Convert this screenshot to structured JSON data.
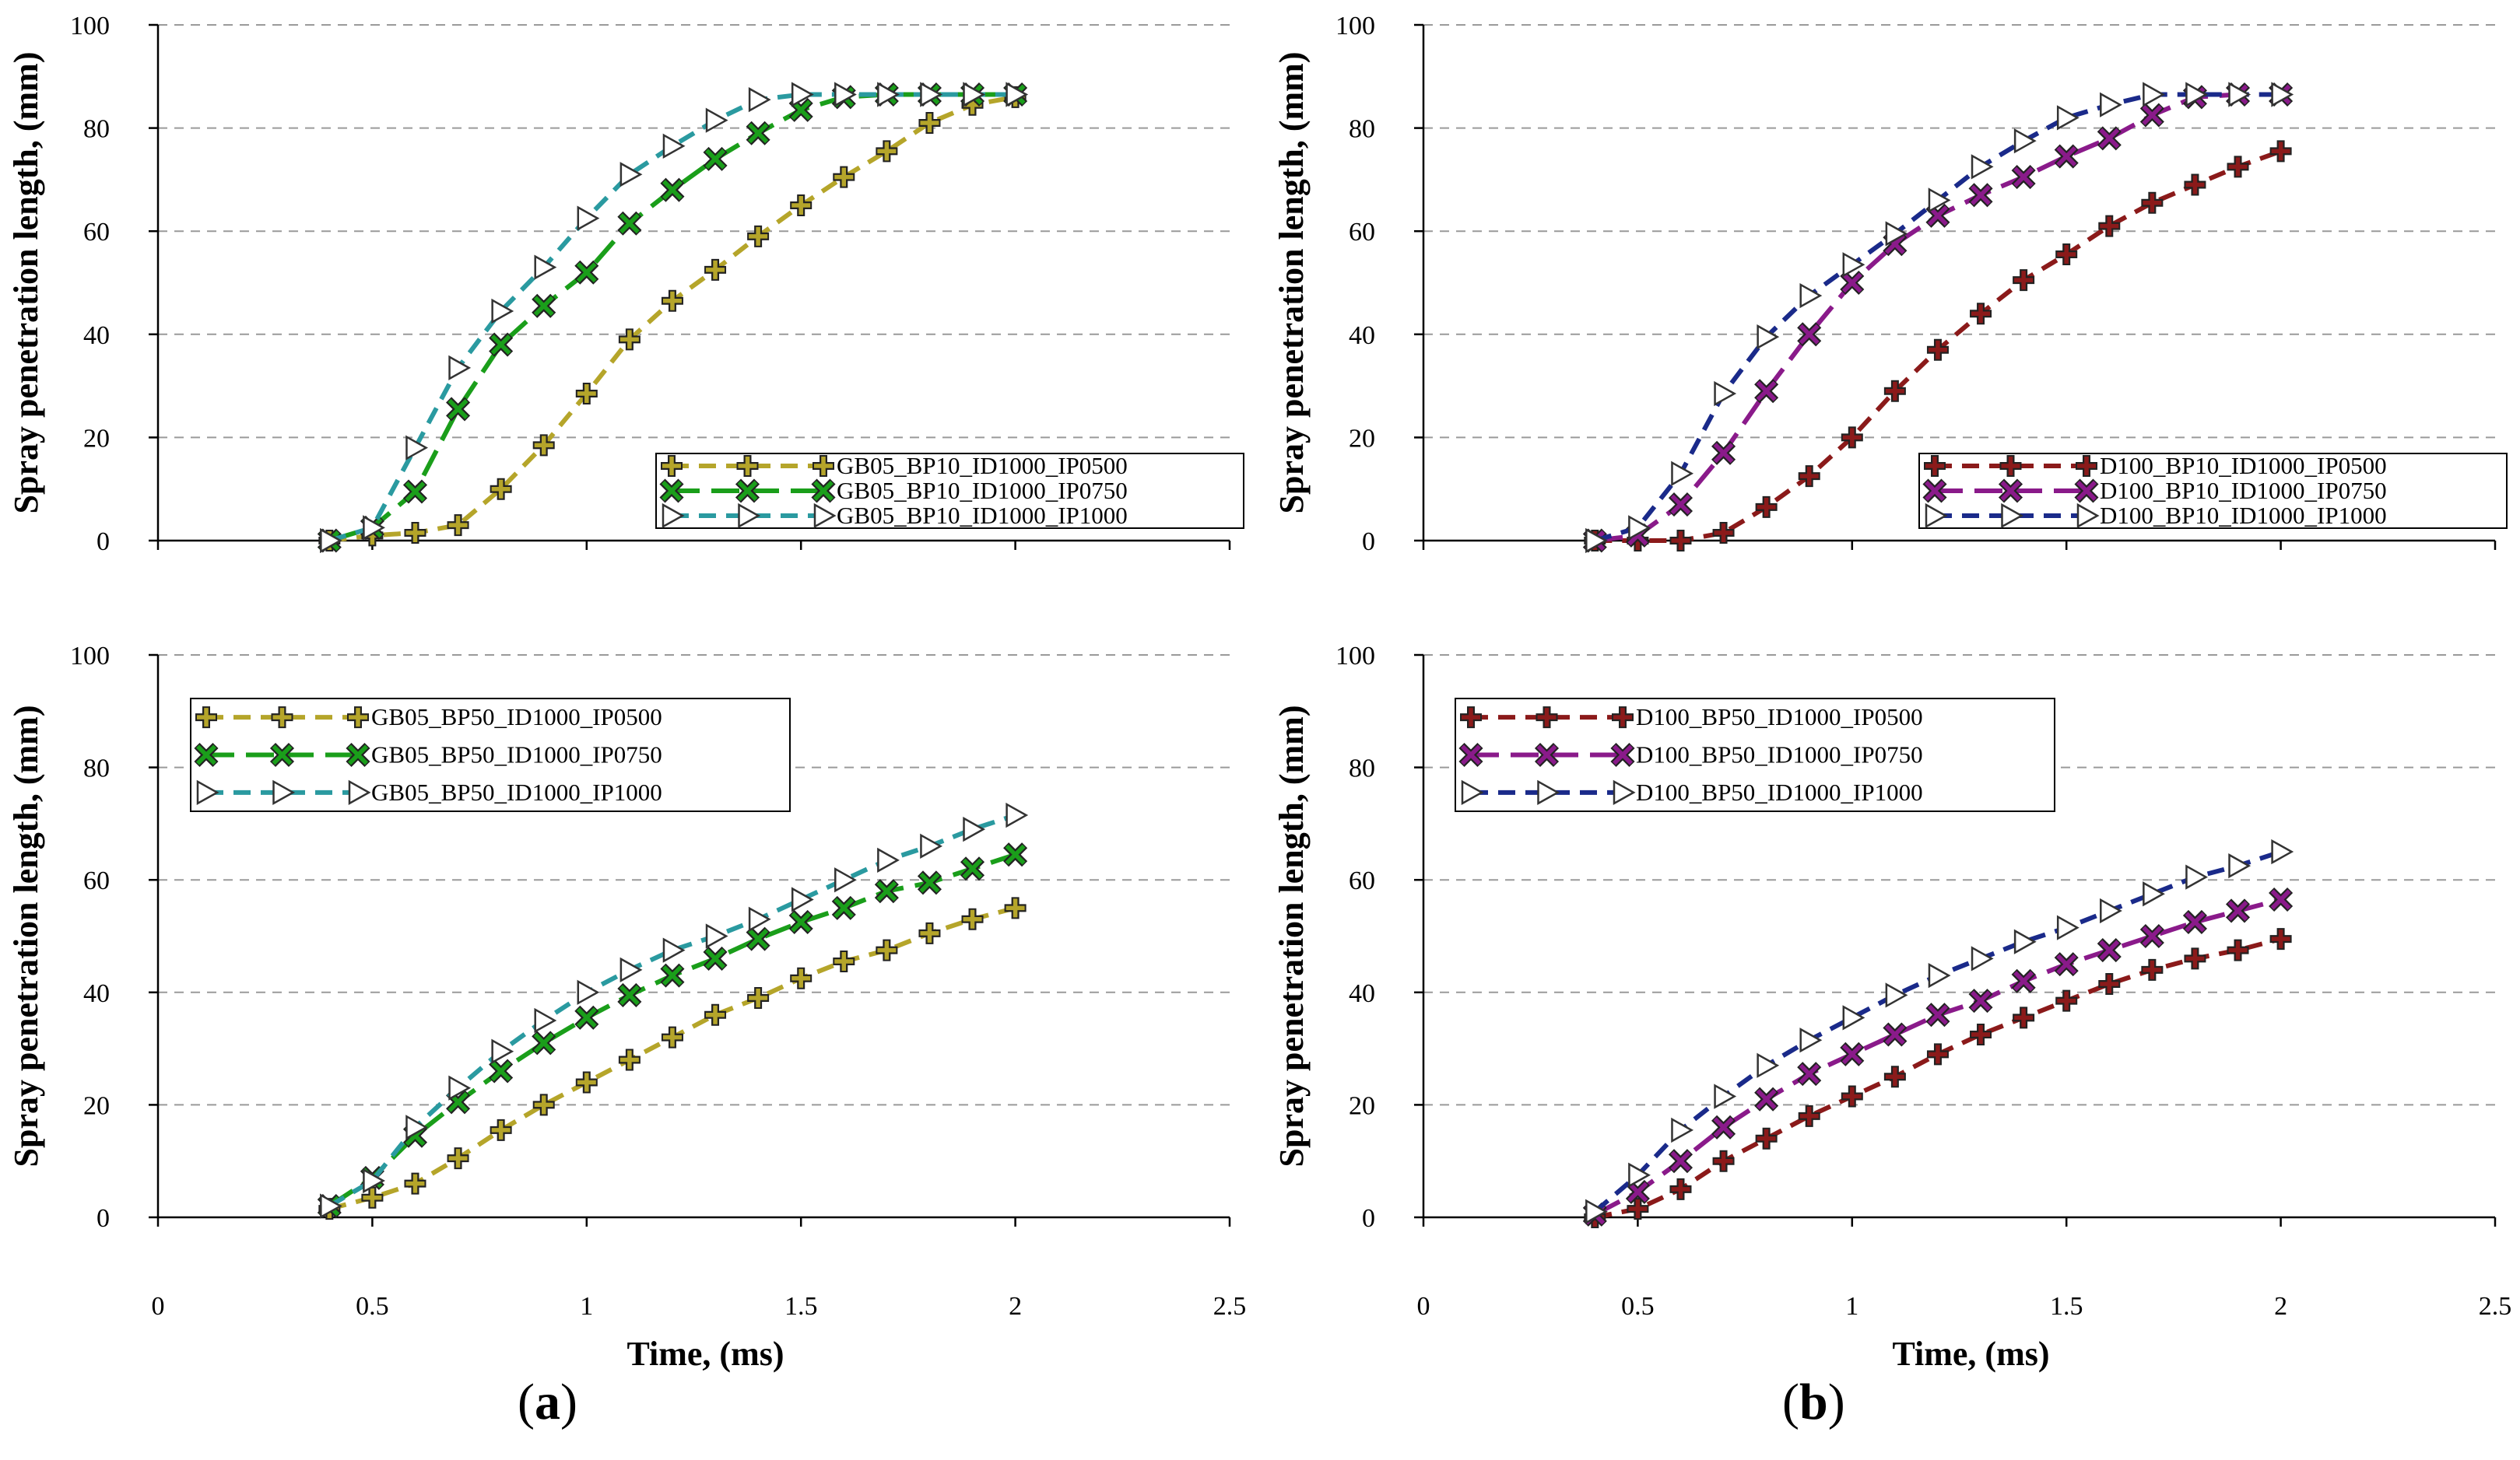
{
  "panel_labels": {
    "a": "a",
    "b": "b"
  },
  "chart_data": [
    {
      "id": "a-top",
      "type": "line",
      "xlabel": "",
      "ylabel": "Spray penetration length, (mm)",
      "xlim": [
        0,
        2.5
      ],
      "ylim": [
        0,
        100
      ],
      "xticks": [
        "0",
        "0.5",
        "1",
        "1.5",
        "2",
        "2.5"
      ],
      "yticks": [
        "0",
        "20",
        "40",
        "60",
        "80",
        "100"
      ],
      "grid": "horizontal dashed",
      "legend_position": "lower-right",
      "x": [
        0.4,
        0.5,
        0.6,
        0.7,
        0.8,
        0.9,
        1.0,
        1.1,
        1.2,
        1.3,
        1.4,
        1.5,
        1.6,
        1.7,
        1.8,
        1.9,
        2.0
      ],
      "series": [
        {
          "name": "GB05_BP10_ID1000_IP0500",
          "color": "#b5a52a",
          "marker": "plus",
          "dash": "dashed",
          "values": [
            0,
            1,
            1.5,
            3,
            10,
            18.5,
            28.5,
            39,
            46.5,
            52.5,
            59,
            65,
            70.5,
            75.5,
            81,
            84.5,
            86
          ]
        },
        {
          "name": "GB05_BP10_ID1000_IP0750",
          "color": "#1a9e1a",
          "marker": "x",
          "dash": "longdash",
          "values": [
            0,
            2.5,
            9.5,
            25.5,
            38,
            45.5,
            52,
            61.5,
            68,
            74,
            79,
            83.5,
            86,
            86.5,
            86.5,
            86.5,
            86.5
          ]
        },
        {
          "name": "GB05_BP10_ID1000_IP1000",
          "color": "#2a9aa0",
          "marker": "triangle",
          "dash": "dashed",
          "values": [
            0,
            2.5,
            18,
            33.5,
            44.5,
            53,
            62.5,
            71,
            76.5,
            81.5,
            85.5,
            86.5,
            86.5,
            86.5,
            86.5,
            86.5,
            86.5
          ]
        }
      ]
    },
    {
      "id": "b-top",
      "type": "line",
      "xlabel": "",
      "ylabel": "Spray penetration length, (mm)",
      "xlim": [
        0,
        2.5
      ],
      "ylim": [
        0,
        100
      ],
      "xticks": [
        "0",
        "0.5",
        "1",
        "1.5",
        "2",
        "2.5"
      ],
      "yticks": [
        "0",
        "20",
        "40",
        "60",
        "80",
        "100"
      ],
      "grid": "horizontal dashed",
      "legend_position": "lower-right",
      "x": [
        0.4,
        0.5,
        0.6,
        0.7,
        0.8,
        0.9,
        1.0,
        1.1,
        1.2,
        1.3,
        1.4,
        1.5,
        1.6,
        1.7,
        1.8,
        1.9,
        2.0
      ],
      "series": [
        {
          "name": "D100_BP10_ID1000_IP0500",
          "color": "#8b1a1a",
          "marker": "plus",
          "dash": "dashed",
          "values": [
            0,
            0,
            0,
            1.5,
            6.5,
            12.5,
            20,
            29,
            37,
            44,
            50.5,
            55.5,
            61,
            65.5,
            69,
            72.5,
            75.5
          ]
        },
        {
          "name": "D100_BP10_ID1000_IP0750",
          "color": "#8a1a8a",
          "marker": "x",
          "dash": "longdash",
          "values": [
            0,
            1,
            7,
            17,
            29,
            40,
            50,
            57.5,
            63,
            67,
            70.5,
            74.5,
            78,
            82.5,
            86,
            86.5,
            86.5
          ]
        },
        {
          "name": "D100_BP10_ID1000_IP1000",
          "color": "#1a2a8a",
          "marker": "triangle",
          "dash": "dashed",
          "values": [
            0,
            2.5,
            13,
            28.5,
            39.5,
            47.5,
            53.5,
            59.5,
            66,
            72.5,
            77.5,
            82,
            84.5,
            86.5,
            86.5,
            86.5,
            86.5
          ]
        }
      ]
    },
    {
      "id": "a-bottom",
      "type": "line",
      "xlabel": "Time, (ms)",
      "ylabel": "Spray penetration length, (mm)",
      "xlim": [
        0,
        2.5
      ],
      "ylim": [
        0,
        100
      ],
      "xticks": [
        "0",
        "0.5",
        "1",
        "1.5",
        "2",
        "2.5"
      ],
      "yticks": [
        "0",
        "20",
        "40",
        "60",
        "80",
        "100"
      ],
      "grid": "horizontal dashed",
      "legend_position": "upper-left",
      "x": [
        0.4,
        0.5,
        0.6,
        0.7,
        0.8,
        0.9,
        1.0,
        1.1,
        1.2,
        1.3,
        1.4,
        1.5,
        1.6,
        1.7,
        1.8,
        1.9,
        2.0
      ],
      "series": [
        {
          "name": "GB05_BP50_ID1000_IP0500",
          "color": "#b5a52a",
          "marker": "plus",
          "dash": "dashed",
          "values": [
            1.5,
            3.5,
            6,
            10.5,
            15.5,
            20,
            24,
            28,
            32,
            36,
            39,
            42.5,
            45.5,
            47.5,
            50.5,
            53,
            55
          ]
        },
        {
          "name": "GB05_BP50_ID1000_IP0750",
          "color": "#1a9e1a",
          "marker": "x",
          "dash": "longdash",
          "values": [
            2,
            7,
            14.5,
            20.5,
            26,
            31,
            35.5,
            39.5,
            43,
            46,
            49.5,
            52.5,
            55,
            58,
            59.5,
            62,
            64.5
          ]
        },
        {
          "name": "GB05_BP50_ID1000_IP1000",
          "color": "#2a9aa0",
          "marker": "triangle",
          "dash": "dashed",
          "values": [
            2,
            6.5,
            16,
            23,
            29.5,
            35,
            40,
            44,
            47.5,
            50,
            53,
            56.5,
            60,
            63.5,
            66,
            69,
            71.5
          ]
        }
      ]
    },
    {
      "id": "b-bottom",
      "type": "line",
      "xlabel": "Time, (ms)",
      "ylabel": "Spray penetration length, (mm)",
      "xlim": [
        0,
        2.5
      ],
      "ylim": [
        0,
        100
      ],
      "xticks": [
        "0",
        "0.5",
        "1",
        "1.5",
        "2",
        "2.5"
      ],
      "yticks": [
        "0",
        "20",
        "40",
        "60",
        "80",
        "100"
      ],
      "grid": "horizontal dashed",
      "legend_position": "upper-left",
      "x": [
        0.4,
        0.5,
        0.6,
        0.7,
        0.8,
        0.9,
        1.0,
        1.1,
        1.2,
        1.3,
        1.4,
        1.5,
        1.6,
        1.7,
        1.8,
        1.9,
        2.0
      ],
      "series": [
        {
          "name": "D100_BP50_ID1000_IP0500",
          "color": "#8b1a1a",
          "marker": "plus",
          "dash": "dashed",
          "values": [
            0,
            1.5,
            5,
            10,
            14,
            18,
            21.5,
            25,
            29,
            32.5,
            35.5,
            38.5,
            41.5,
            44,
            46,
            47.5,
            49.5
          ]
        },
        {
          "name": "D100_BP50_ID1000_IP0750",
          "color": "#8a1a8a",
          "marker": "x",
          "dash": "longdash",
          "values": [
            0.5,
            4.5,
            10,
            16,
            21,
            25.5,
            29,
            32.5,
            36,
            38.5,
            42,
            45,
            47.5,
            50,
            52.5,
            54.5,
            56.5
          ]
        },
        {
          "name": "D100_BP50_ID1000_IP1000",
          "color": "#1a2a8a",
          "marker": "triangle",
          "dash": "dashed",
          "values": [
            1,
            7.5,
            15.5,
            21.5,
            27,
            31.5,
            35.5,
            39.5,
            43,
            46,
            49,
            51.5,
            54.5,
            57.5,
            60.5,
            62.5,
            65
          ]
        }
      ]
    }
  ]
}
